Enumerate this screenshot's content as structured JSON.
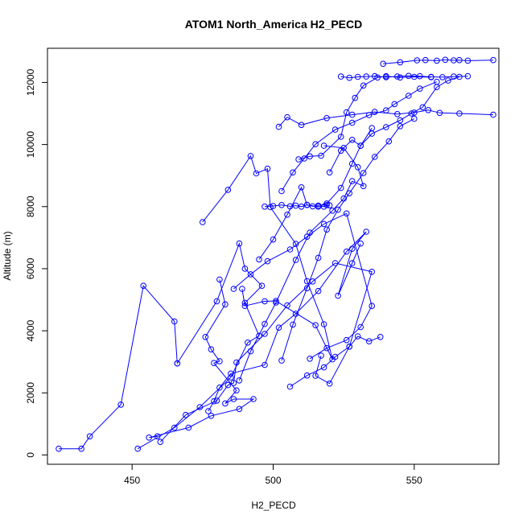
{
  "chart_data": {
    "type": "line",
    "title": "ATOM1 North_America H2_PECD",
    "xlabel": "H2_PECD",
    "ylabel": "Altitude (m)",
    "xlim": [
      420,
      580
    ],
    "ylim": [
      -300,
      13100
    ],
    "xticks": [
      450,
      500,
      550
    ],
    "yticks": [
      0,
      2000,
      4000,
      6000,
      8000,
      10000,
      12000
    ],
    "grid": false,
    "legend": "none",
    "marker": "open-circle",
    "color": "#0000ff",
    "series": [
      {
        "x": [
          452,
          465,
          474,
          485,
          491,
          495,
          490,
          496,
          490,
          488,
          480,
          466
        ],
        "y": [
          200,
          880,
          1540,
          2500,
          3620,
          3840,
          4900,
          5450,
          6000,
          6810,
          4950,
          2950
        ]
      },
      {
        "x": [
          466,
          465,
          454,
          446,
          435,
          432,
          424
        ],
        "y": [
          2950,
          4300,
          5450,
          1620,
          600,
          200,
          200
        ]
      },
      {
        "x": [
          459,
          456,
          470,
          478,
          488,
          493,
          486,
          483,
          487,
          479,
          481,
          478,
          476,
          483,
          481
        ],
        "y": [
          600,
          560,
          880,
          1260,
          1480,
          1800,
          1800,
          1660,
          2080,
          2960,
          3020,
          3400,
          3800,
          4850,
          5650
        ]
      },
      {
        "x": [
          475,
          484,
          492,
          494,
          498,
          499,
          508,
          512,
          518,
          521,
          515,
          501,
          497,
          490,
          489
        ],
        "y": [
          7500,
          8540,
          9630,
          9070,
          9220,
          7980,
          6800,
          5600,
          4210,
          3080,
          4180,
          4960,
          4950,
          4800,
          5350
        ]
      },
      {
        "x": [
          460,
          469,
          480,
          484,
          486,
          487,
          497,
          505,
          514,
          522,
          535,
          527,
          520,
          515,
          517
        ],
        "y": [
          420,
          1290,
          1750,
          2250,
          2320,
          2980,
          3900,
          4820,
          5590,
          6180,
          5900,
          3490,
          2300,
          2550,
          3200
        ]
      },
      {
        "x": [
          477,
          479,
          481,
          485,
          497,
          502,
          508,
          516,
          526,
          533,
          528,
          523,
          528,
          531
        ],
        "y": [
          1410,
          1730,
          2170,
          2620,
          2900,
          4100,
          4550,
          5280,
          6550,
          7190,
          6640,
          5130,
          6180,
          6810
        ]
      },
      {
        "x": [
          488,
          492,
          497,
          501,
          508,
          513,
          521,
          525,
          528,
          532,
          530,
          525,
          518
        ],
        "y": [
          2400,
          3340,
          4220,
          4910,
          6280,
          7160,
          7870,
          8260,
          8820,
          8660,
          9270,
          9890,
          9960
        ]
      },
      {
        "x": [
          495,
          500,
          505,
          510,
          512,
          516,
          519,
          524,
          528,
          531,
          535
        ],
        "y": [
          6300,
          6940,
          7740,
          8620,
          8050,
          8000,
          8100,
          8600,
          9380,
          9960,
          10530
        ]
      },
      {
        "x": [
          497,
          500,
          503,
          506,
          508,
          510,
          512,
          514,
          516,
          518,
          519,
          520
        ],
        "y": [
          8000,
          8020,
          8050,
          8010,
          8030,
          8000,
          8060,
          8010,
          8030,
          8000,
          8050,
          8040
        ]
      },
      {
        "x": [
          503,
          507,
          511,
          515,
          522,
          528,
          534,
          540,
          543,
          548,
          552,
          558
        ],
        "y": [
          8500,
          9100,
          9550,
          10010,
          10480,
          10700,
          10950,
          11100,
          11300,
          11570,
          11800,
          12020
        ]
      },
      {
        "x": [
          502,
          505,
          510,
          519,
          528,
          536,
          544,
          550,
          555,
          559,
          566,
          578
        ],
        "y": [
          10570,
          10880,
          10630,
          10850,
          10960,
          11050,
          10980,
          11030,
          11110,
          11020,
          11000,
          10960
        ]
      },
      {
        "x": [
          509,
          513,
          517,
          524,
          526,
          529,
          532,
          537,
          540,
          545,
          550,
          556
        ],
        "y": [
          9520,
          9620,
          9640,
          10250,
          11040,
          11500,
          11900,
          12160,
          12200,
          12160,
          12180,
          12170
        ]
      },
      {
        "x": [
          524,
          527,
          530,
          533,
          536,
          540,
          544,
          548,
          552,
          556,
          560,
          564,
          569
        ],
        "y": [
          12190,
          12150,
          12180,
          12190,
          12200,
          12170,
          12190,
          12210,
          12200,
          12180,
          12170,
          12190,
          12200
        ]
      },
      {
        "x": [
          539,
          545,
          551,
          554,
          558,
          561,
          564,
          566,
          569,
          578
        ],
        "y": [
          12600,
          12650,
          12710,
          12720,
          12700,
          12730,
          12710,
          12720,
          12700,
          12720
        ]
      },
      {
        "x": [
          520,
          524,
          528,
          531,
          535,
          540,
          545,
          549,
          553,
          558,
          562,
          566
        ],
        "y": [
          9100,
          9800,
          10150,
          9960,
          10350,
          10560,
          10780,
          11000,
          11200,
          11850,
          12060,
          12180
        ]
      },
      {
        "x": [
          486,
          492,
          498,
          506,
          512,
          518,
          526,
          535,
          531,
          526,
          519,
          513
        ],
        "y": [
          5350,
          5820,
          6240,
          6620,
          7030,
          7440,
          7780,
          4800,
          4120,
          3700,
          3440,
          3100
        ]
      },
      {
        "x": [
          506,
          512,
          518,
          522,
          527,
          530,
          534,
          538
        ],
        "y": [
          2200,
          2560,
          2820,
          3160,
          3490,
          3820,
          3660,
          3800
        ]
      },
      {
        "x": [
          503,
          507,
          512,
          516,
          519,
          523,
          527,
          532,
          536,
          541,
          545,
          550
        ],
        "y": [
          3040,
          4200,
          5370,
          6350,
          7260,
          7900,
          8430,
          9080,
          9600,
          10100,
          10590,
          10830
        ]
      }
    ]
  }
}
